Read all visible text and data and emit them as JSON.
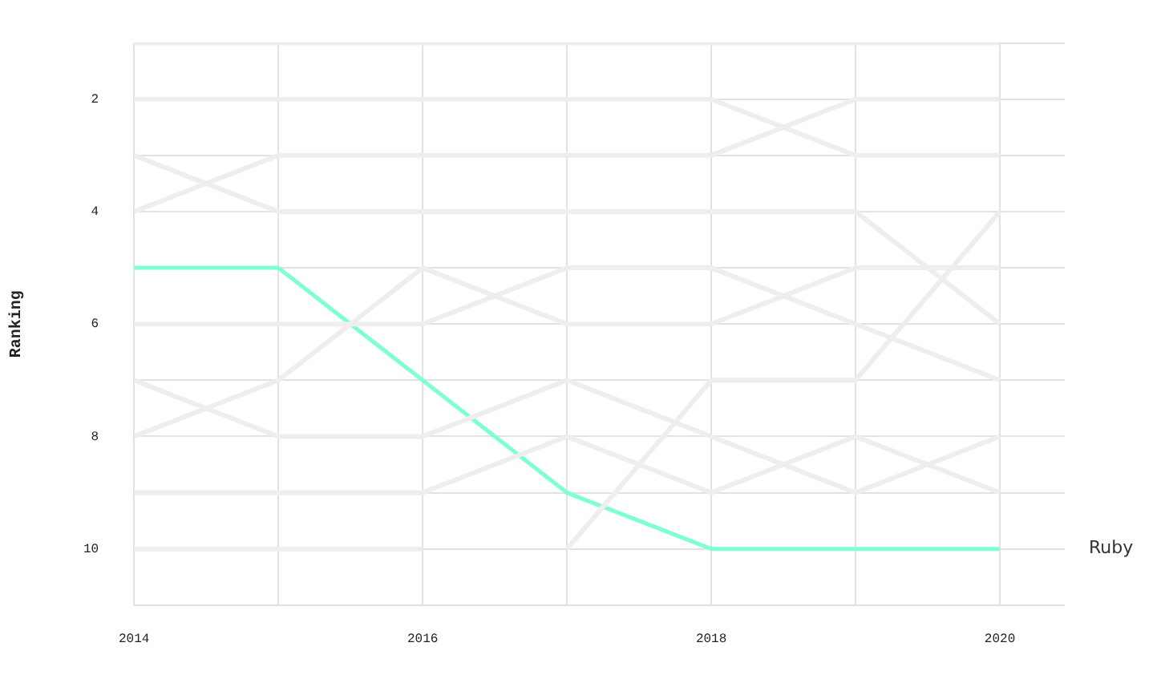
{
  "chart_data": {
    "type": "line",
    "ylabel": "Ranking",
    "x": [
      2014,
      2015,
      2016,
      2017,
      2018,
      2019,
      2020
    ],
    "xlim": [
      2014,
      2020.45
    ],
    "xticks": [
      2014,
      {
        "value": 2015,
        "label": null
      },
      2016,
      {
        "value": 2017,
        "label": null
      },
      2018,
      {
        "value": 2019,
        "label": null
      },
      2020
    ],
    "ylim": [
      11,
      1
    ],
    "yticks": [
      {
        "value": 1,
        "label": null
      },
      2,
      {
        "value": 3,
        "label": null
      },
      4,
      {
        "value": 5,
        "label": null
      },
      6,
      {
        "value": 7,
        "label": null
      },
      8,
      {
        "value": 9,
        "label": null
      },
      10,
      {
        "value": 11,
        "label": null
      }
    ],
    "grid": true,
    "legend": false,
    "marker": "none",
    "line_style": "solid",
    "series": [
      {
        "color": "#eeeeee",
        "values": [
          1,
          1,
          1,
          1,
          1,
          1,
          1
        ]
      },
      {
        "color": "#eeeeee",
        "values": [
          2,
          2,
          2,
          2,
          2,
          3,
          3
        ]
      },
      {
        "color": "#eeeeee",
        "values": [
          4,
          3,
          3,
          3,
          3,
          2,
          2
        ]
      },
      {
        "color": "#eeeeee",
        "values": [
          3,
          4,
          4,
          4,
          4,
          4,
          6
        ]
      },
      {
        "color": "#eeeeee",
        "values": [
          6,
          6,
          6,
          5,
          5,
          6,
          7
        ]
      },
      {
        "color": "#eeeeee",
        "values": [
          8,
          7,
          5,
          6,
          6,
          5,
          5
        ]
      },
      {
        "color": "#eeeeee",
        "values": [
          7,
          8,
          8,
          7,
          8,
          9,
          8
        ]
      },
      {
        "color": "#eeeeee",
        "values": [
          9,
          9,
          9,
          8,
          9,
          8,
          9
        ]
      },
      {
        "color": "#eeeeee",
        "values": [
          10,
          10,
          10,
          null,
          null,
          null,
          null
        ]
      },
      {
        "color": "#eeeeee",
        "values": [
          null,
          null,
          null,
          10,
          7,
          7,
          4
        ]
      },
      {
        "name": "Ruby",
        "color": "#7fffd4",
        "values": [
          5,
          5,
          7,
          9,
          10,
          10,
          10
        ]
      }
    ]
  }
}
